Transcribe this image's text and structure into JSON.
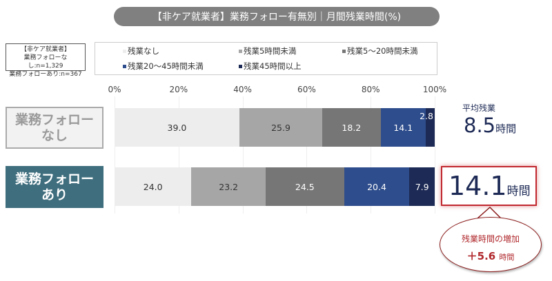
{
  "title": "【非ケア就業者】業務フォロー有無別｜月間残業時間(%)",
  "sample": {
    "line1": "【非ケア就業者】",
    "line2": "業務フォローなし:n=1,329",
    "line3": "業務フォローあり:n=367"
  },
  "chart_data": {
    "type": "bar",
    "orientation": "horizontal-stacked-100",
    "categories": [
      "業務フォローなし",
      "業務フォローあり"
    ],
    "xlim": [
      0,
      100
    ],
    "x_ticks": [
      "0%",
      "20%",
      "40%",
      "60%",
      "80%",
      "100%"
    ],
    "legend_position": "top",
    "series": [
      {
        "name": "残業なし",
        "values": [
          39.0,
          24.0
        ],
        "color": "#ededed"
      },
      {
        "name": "残業5時間未満",
        "values": [
          25.9,
          23.2
        ],
        "color": "#a6a6a6"
      },
      {
        "name": "残業5～20時間未満",
        "values": [
          18.2,
          24.5
        ],
        "color": "#767676"
      },
      {
        "name": "残業20～45時間未満",
        "values": [
          14.1,
          20.4
        ],
        "color": "#2e4d8c"
      },
      {
        "name": "残業45時間以上",
        "values": [
          2.8,
          7.9
        ],
        "color": "#1d2a55"
      }
    ]
  },
  "row_labels": [
    {
      "l1": "業務フォロー",
      "l2": "なし"
    },
    {
      "l1": "業務フォロー",
      "l2": "あり"
    }
  ],
  "average": {
    "label": "平均残業",
    "none_value": "8.5",
    "with_value": "14.1",
    "unit": "時間"
  },
  "callout": {
    "line1": "残業時間の増加",
    "value": "＋5.6",
    "unit": "時間"
  },
  "colors": {
    "highlight_row": "#3f6e7e",
    "accent": "#c0272d",
    "navy": "#1d2a55"
  }
}
